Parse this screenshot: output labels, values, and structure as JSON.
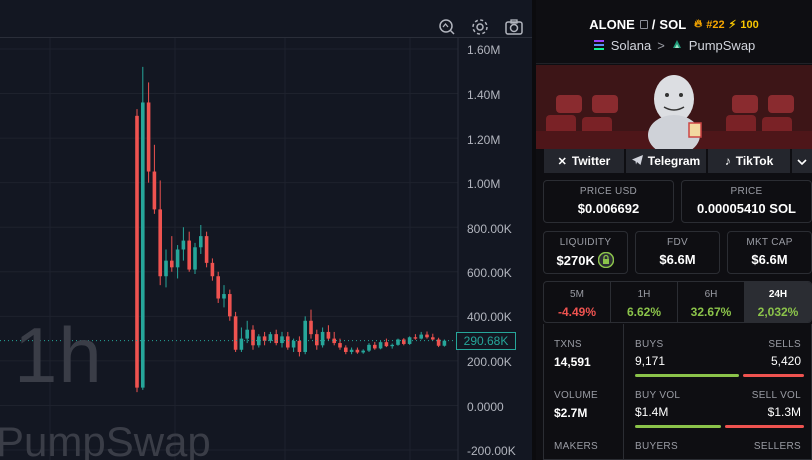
{
  "chart": {
    "interval_watermark": "1h",
    "dex_watermark": "PumpSwap",
    "price_axis": [
      "1.60M",
      "1.40M",
      "1.20M",
      "1.00M",
      "800.00K",
      "600.00K",
      "400.00K",
      "200.00K",
      "0.0000",
      "-200.00K"
    ],
    "last_price": "290.68K",
    "colors": {
      "up": "#26a69a",
      "down": "#ef5350"
    },
    "toolbar_icons": [
      "indicator-search-icon",
      "settings-icon",
      "camera-icon"
    ]
  },
  "chart_data": {
    "type": "candlestick",
    "ylim": [
      -200000,
      1600000
    ],
    "last_price": 290680,
    "candles": [
      {
        "o": 1300000,
        "h": 1330000,
        "l": 60000,
        "c": 80000
      },
      {
        "o": 80000,
        "h": 1520000,
        "l": 70000,
        "c": 1360000
      },
      {
        "o": 1360000,
        "h": 1450000,
        "l": 1000000,
        "c": 1050000
      },
      {
        "o": 1050000,
        "h": 1170000,
        "l": 860000,
        "c": 880000
      },
      {
        "o": 880000,
        "h": 1010000,
        "l": 540000,
        "c": 580000
      },
      {
        "o": 580000,
        "h": 700000,
        "l": 530000,
        "c": 650000
      },
      {
        "o": 650000,
        "h": 760000,
        "l": 600000,
        "c": 620000
      },
      {
        "o": 620000,
        "h": 720000,
        "l": 570000,
        "c": 700000
      },
      {
        "o": 700000,
        "h": 800000,
        "l": 650000,
        "c": 740000
      },
      {
        "o": 740000,
        "h": 780000,
        "l": 600000,
        "c": 610000
      },
      {
        "o": 610000,
        "h": 730000,
        "l": 590000,
        "c": 710000
      },
      {
        "o": 710000,
        "h": 810000,
        "l": 680000,
        "c": 760000
      },
      {
        "o": 760000,
        "h": 780000,
        "l": 620000,
        "c": 640000
      },
      {
        "o": 640000,
        "h": 660000,
        "l": 560000,
        "c": 580000
      },
      {
        "o": 580000,
        "h": 600000,
        "l": 460000,
        "c": 480000
      },
      {
        "o": 480000,
        "h": 540000,
        "l": 440000,
        "c": 500000
      },
      {
        "o": 500000,
        "h": 520000,
        "l": 380000,
        "c": 400000
      },
      {
        "o": 400000,
        "h": 420000,
        "l": 240000,
        "c": 250000
      },
      {
        "o": 250000,
        "h": 350000,
        "l": 240000,
        "c": 300000
      },
      {
        "o": 300000,
        "h": 380000,
        "l": 280000,
        "c": 340000
      },
      {
        "o": 340000,
        "h": 360000,
        "l": 250000,
        "c": 270000
      },
      {
        "o": 270000,
        "h": 320000,
        "l": 260000,
        "c": 310000
      },
      {
        "o": 310000,
        "h": 330000,
        "l": 270000,
        "c": 290000
      },
      {
        "o": 290000,
        "h": 330000,
        "l": 280000,
        "c": 320000
      },
      {
        "o": 320000,
        "h": 340000,
        "l": 270000,
        "c": 280000
      },
      {
        "o": 280000,
        "h": 330000,
        "l": 260000,
        "c": 310000
      },
      {
        "o": 310000,
        "h": 330000,
        "l": 250000,
        "c": 260000
      },
      {
        "o": 260000,
        "h": 300000,
        "l": 240000,
        "c": 290000
      },
      {
        "o": 290000,
        "h": 310000,
        "l": 220000,
        "c": 240000
      },
      {
        "o": 240000,
        "h": 400000,
        "l": 230000,
        "c": 380000
      },
      {
        "o": 380000,
        "h": 430000,
        "l": 300000,
        "c": 320000
      },
      {
        "o": 320000,
        "h": 340000,
        "l": 250000,
        "c": 270000
      },
      {
        "o": 270000,
        "h": 350000,
        "l": 260000,
        "c": 330000
      },
      {
        "o": 330000,
        "h": 360000,
        "l": 290000,
        "c": 300000
      },
      {
        "o": 300000,
        "h": 330000,
        "l": 270000,
        "c": 280000
      },
      {
        "o": 280000,
        "h": 300000,
        "l": 250000,
        "c": 260000
      },
      {
        "o": 260000,
        "h": 270000,
        "l": 230000,
        "c": 240000
      },
      {
        "o": 240000,
        "h": 260000,
        "l": 230000,
        "c": 250000
      },
      {
        "o": 250000,
        "h": 260000,
        "l": 232000,
        "c": 238000
      },
      {
        "o": 238000,
        "h": 252000,
        "l": 232000,
        "c": 246000
      },
      {
        "o": 246000,
        "h": 280000,
        "l": 240000,
        "c": 272000
      },
      {
        "o": 272000,
        "h": 285000,
        "l": 250000,
        "c": 256000
      },
      {
        "o": 256000,
        "h": 290000,
        "l": 252000,
        "c": 284000
      },
      {
        "o": 284000,
        "h": 300000,
        "l": 262000,
        "c": 266000
      },
      {
        "o": 266000,
        "h": 278000,
        "l": 255000,
        "c": 272000
      },
      {
        "o": 272000,
        "h": 300000,
        "l": 268000,
        "c": 296000
      },
      {
        "o": 296000,
        "h": 302000,
        "l": 270000,
        "c": 276000
      },
      {
        "o": 276000,
        "h": 310000,
        "l": 272000,
        "c": 306000
      },
      {
        "o": 306000,
        "h": 320000,
        "l": 295000,
        "c": 300000
      },
      {
        "o": 300000,
        "h": 330000,
        "l": 296000,
        "c": 318000
      },
      {
        "o": 318000,
        "h": 332000,
        "l": 300000,
        "c": 306000
      },
      {
        "o": 306000,
        "h": 322000,
        "l": 292000,
        "c": 296000
      },
      {
        "o": 296000,
        "h": 304000,
        "l": 262000,
        "c": 268000
      },
      {
        "o": 268000,
        "h": 296000,
        "l": 264000,
        "c": 290680
      }
    ]
  },
  "pair": {
    "base": "ALONE",
    "sep": "/",
    "quote": "SOL",
    "rank": "#22",
    "boost": "100",
    "chain": "Solana",
    "chevron": ">",
    "dex": "PumpSwap"
  },
  "socials": [
    {
      "label": "Twitter",
      "icon": "x-icon"
    },
    {
      "label": "Telegram",
      "icon": "telegram-icon"
    },
    {
      "label": "TikTok",
      "icon": "tiktok-icon"
    }
  ],
  "prices": {
    "usd_label": "PRICE USD",
    "usd": "$0.006692",
    "native_label": "PRICE",
    "native": "0.00005410 SOL"
  },
  "metrics": {
    "liquidity_label": "LIQUIDITY",
    "liquidity": "$270K",
    "fdv_label": "FDV",
    "fdv": "$6.6M",
    "mcap_label": "MKT CAP",
    "mcap": "$6.6M"
  },
  "timeframes": [
    {
      "label": "5M",
      "change": "-4.49%",
      "dir": "down"
    },
    {
      "label": "1H",
      "change": "6.62%",
      "dir": "up"
    },
    {
      "label": "6H",
      "change": "32.67%",
      "dir": "up"
    },
    {
      "label": "24H",
      "change": "2,032%",
      "dir": "up",
      "selected": true
    }
  ],
  "stats": {
    "txns_label": "TXNS",
    "txns": "14,591",
    "buys_label": "BUYS",
    "buys": "9,171",
    "sells_label": "SELLS",
    "sells": "5,420",
    "volume_label": "VOLUME",
    "volume": "$2.7M",
    "buy_vol_label": "BUY VOL",
    "buy_vol": "$1.4M",
    "sell_vol_label": "SELL VOL",
    "sell_vol": "$1.3M",
    "makers_label": "MAKERS",
    "buyers_label": "BUYERS",
    "sellers_label": "SELLERS",
    "buys_ratio": 0.63,
    "buy_vol_ratio": 0.52
  }
}
